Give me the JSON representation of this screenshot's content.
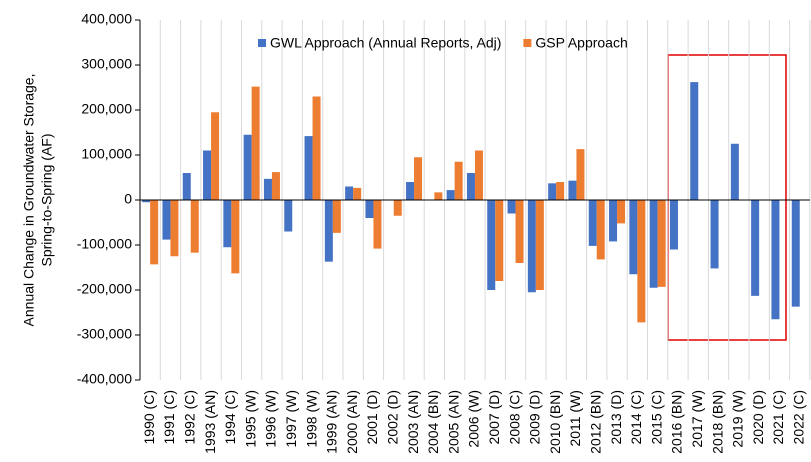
{
  "chart_data": {
    "type": "bar",
    "ylabel": [
      "Annual Change in Groundwater Storage,",
      "Spring-to-Spring (AF)"
    ],
    "categories": [
      "1990 (C)",
      "1991 (C)",
      "1992 (C)",
      "1993 (AN)",
      "1994 (C)",
      "1995 (W)",
      "1996 (W)",
      "1997 (W)",
      "1998 (W)",
      "1999 (AN)",
      "2000 (AN)",
      "2001 (D)",
      "2002 (D)",
      "2003 (AN)",
      "2004 (BN)",
      "2005 (AN)",
      "2006 (W)",
      "2007 (D)",
      "2008 (C)",
      "2009 (D)",
      "2010 (BN)",
      "2011 (W)",
      "2012 (BN)",
      "2013 (D)",
      "2014 (C)",
      "2015 (C)",
      "2016 (BN)",
      "2017 (W)",
      "2018 (BN)",
      "2019 (W)",
      "2020 (D)",
      "2021 (C)",
      "2022 (C)"
    ],
    "series": [
      {
        "name": "GWL Approach (Annual Reports, Adj)",
        "color": "#4472c4",
        "values": [
          -5000,
          -88000,
          60000,
          110000,
          -105000,
          145000,
          47000,
          -70000,
          142000,
          -137000,
          30000,
          -40000,
          null,
          40000,
          null,
          22000,
          60000,
          -200000,
          -30000,
          -205000,
          37000,
          43000,
          -102000,
          -92000,
          -165000,
          -195000,
          -110000,
          262000,
          -152000,
          125000,
          -213000,
          -265000,
          -237000
        ]
      },
      {
        "name": "GSP Approach",
        "color": "#ed7d31",
        "values": [
          -143000,
          -125000,
          -117000,
          195000,
          -163000,
          252000,
          62000,
          null,
          230000,
          -73000,
          27000,
          -108000,
          -35000,
          95000,
          17000,
          85000,
          110000,
          -180000,
          -140000,
          -200000,
          40000,
          113000,
          -132000,
          -52000,
          -272000,
          -193000,
          null,
          null,
          null,
          null,
          null,
          null,
          null
        ]
      }
    ],
    "ylim": [
      -400000,
      400000
    ],
    "yticks": [
      {
        "value": -400000,
        "label": "-400,000"
      },
      {
        "value": -300000,
        "label": "-300,000"
      },
      {
        "value": -200000,
        "label": "-200,000"
      },
      {
        "value": -100000,
        "label": "-100,000"
      },
      0,
      {
        "value": 100000,
        "label": "100,000"
      },
      {
        "value": 200000,
        "label": "200,000"
      },
      {
        "value": 300000,
        "label": "300,000"
      },
      {
        "value": 400000,
        "label": "400,000"
      }
    ],
    "legend": "top"
  }
}
